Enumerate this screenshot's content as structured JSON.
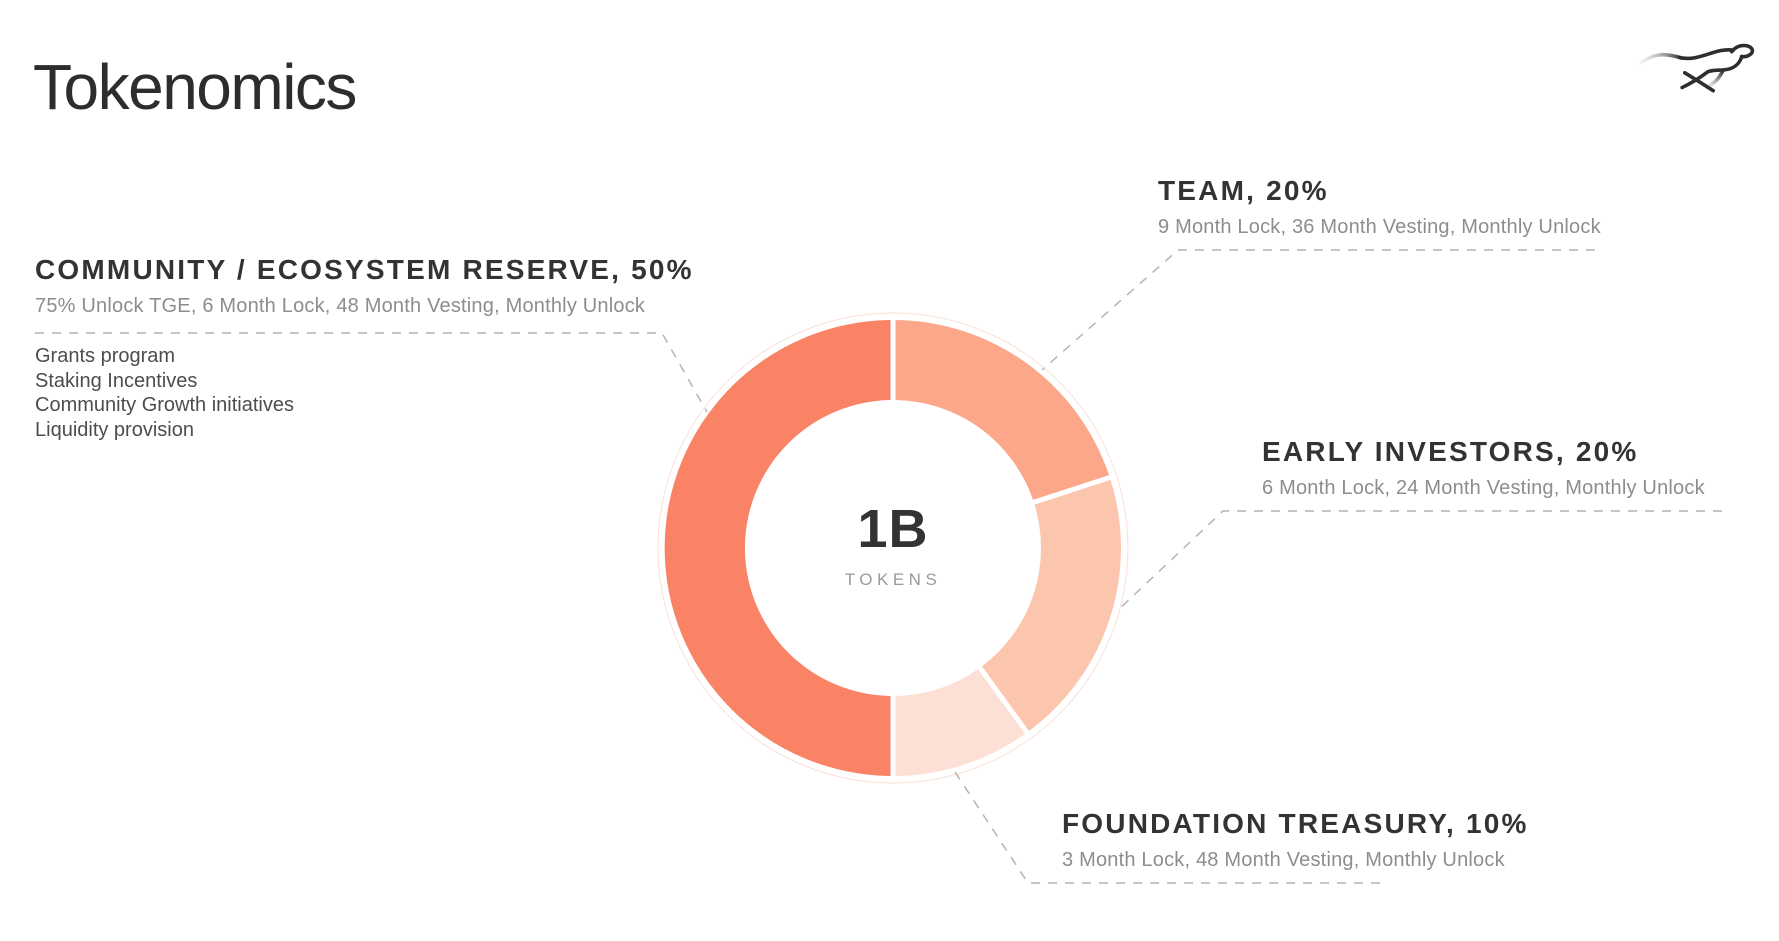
{
  "page": {
    "title": "Tokenomics"
  },
  "logo": {
    "name": "cheetah-logo"
  },
  "chart_data": {
    "type": "pie",
    "title": "Tokenomics",
    "center_label": "1B",
    "center_sublabel": "TOKENS",
    "total_supply": "1B TOKENS",
    "start_angle_deg": 0,
    "clockwise": true,
    "donut_hole_ratio": 0.65,
    "legend_position": "around-chart",
    "segments": [
      {
        "name": "Team",
        "label": "TEAM, 20%",
        "value": 20,
        "color": "#FCA78A",
        "details": "9 Month Lock, 36 Month Vesting, Monthly Unlock"
      },
      {
        "name": "Early Investors",
        "label": "EARLY INVESTORS, 20%",
        "value": 20,
        "color": "#FCC6AE",
        "details": "6 Month Lock, 24 Month Vesting, Monthly Unlock"
      },
      {
        "name": "Foundation Treasury",
        "label": "FOUNDATION TREASURY, 10%",
        "value": 10,
        "color": "#FDE0D5",
        "details": "3 Month Lock, 48 Month Vesting, Monthly Unlock"
      },
      {
        "name": "Community / Ecosystem Reserve",
        "label": "COMMUNITY / ECOSYSTEM RESERVE, 50%",
        "value": 50,
        "color": "#FA8265",
        "details": "75% Unlock TGE, 6 Month Lock, 48 Month Vesting, Monthly Unlock",
        "notes": [
          "Grants program",
          "Staking Incentives",
          "Community Growth initiatives",
          "Liquidity provision"
        ]
      }
    ]
  }
}
